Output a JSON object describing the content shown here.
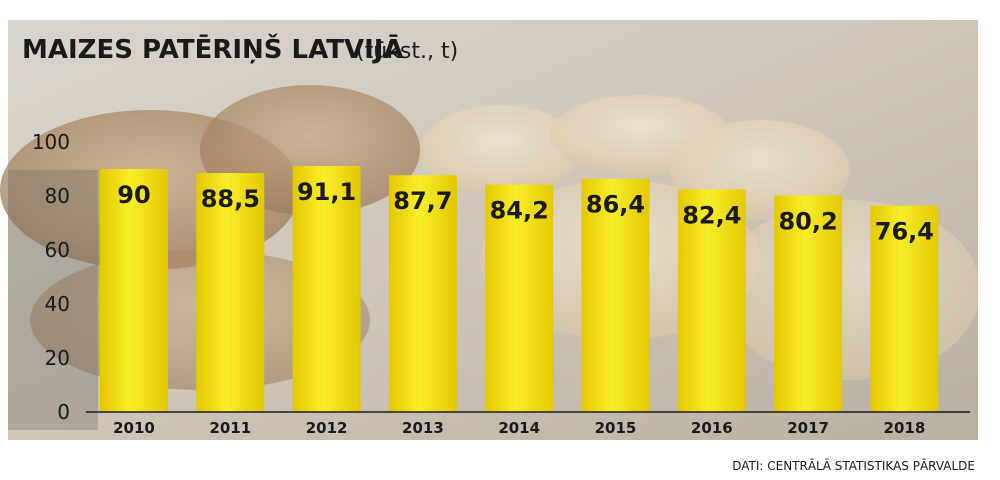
{
  "chart_data": {
    "type": "bar",
    "title": "MAIZES PATĒRIŅŠ LATVIJĀ",
    "title_unit": "(tūkst., t)",
    "categories": [
      "2010",
      "2011",
      "2012",
      "2013",
      "2014",
      "2015",
      "2016",
      "2017",
      "2018"
    ],
    "values": [
      90,
      88.5,
      91.1,
      87.7,
      84.2,
      86.4,
      82.4,
      80.2,
      76.4
    ],
    "value_labels": [
      "90",
      "88,5",
      "91,1",
      "87,7",
      "84,2",
      "86,4",
      "82,4",
      "80,2",
      "76,4"
    ],
    "yticks": [
      "0",
      "20",
      "40",
      "60",
      "80",
      "100"
    ],
    "ylim": [
      0,
      100
    ],
    "grid": false,
    "source": "DATI: CENTRĀLĀ STATISTIKAS PĀRVALDE",
    "colors": {
      "bar_light": "#f7ee2a",
      "bar_dark": "#e3c800",
      "text": "#1a1a1a"
    }
  }
}
